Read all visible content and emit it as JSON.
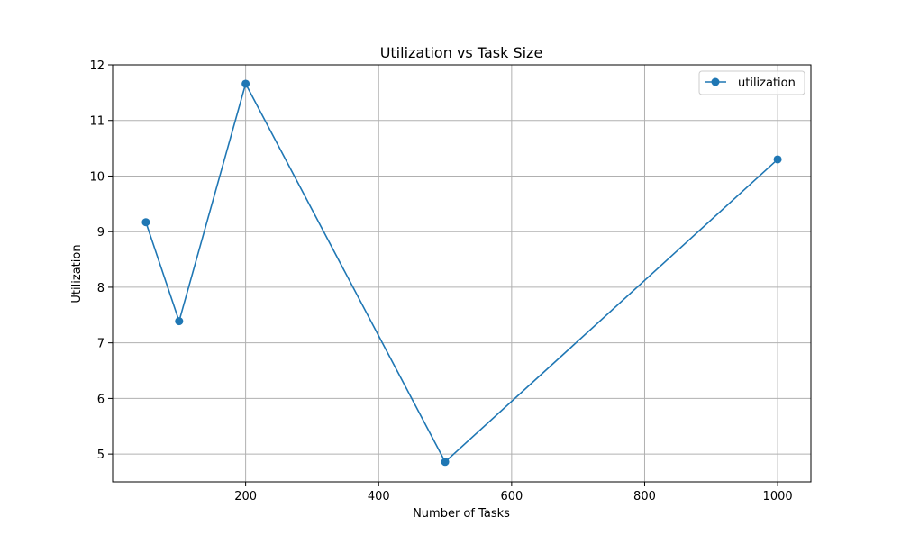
{
  "chart_data": {
    "type": "line",
    "title": "Utilization vs Task Size",
    "xlabel": "Number of Tasks",
    "ylabel": "Utilization",
    "xlim": [
      0,
      1050
    ],
    "ylim": [
      4.5,
      12
    ],
    "xticks": [
      200,
      400,
      600,
      800,
      1000
    ],
    "yticks": [
      5,
      6,
      7,
      8,
      9,
      10,
      11,
      12
    ],
    "grid": true,
    "legend_position": "top-right",
    "series": [
      {
        "name": "utilization",
        "color": "#1f77b4",
        "marker": "circle",
        "x": [
          50,
          100,
          200,
          500,
          1000
        ],
        "y": [
          9.17,
          7.39,
          11.66,
          4.86,
          10.3
        ]
      }
    ]
  }
}
